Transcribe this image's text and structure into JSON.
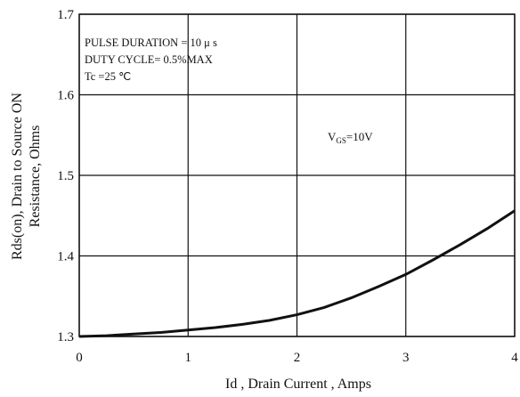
{
  "chart_data": {
    "type": "line",
    "title": "",
    "xlabel": "Id , Drain Current , Amps",
    "ylabel_lines": [
      "Rds(on), Drain to Source ON",
      "Resistance, Ohms"
    ],
    "xlim": [
      0,
      4
    ],
    "ylim": [
      1.3,
      1.7
    ],
    "x_ticks": [
      0,
      1,
      2,
      3,
      4
    ],
    "y_ticks": [
      1.3,
      1.4,
      1.5,
      1.6,
      1.7
    ],
    "x_tick_labels": [
      "0",
      "1",
      "2",
      "3",
      "4"
    ],
    "y_tick_labels": [
      "1.3",
      "1.4",
      "1.5",
      "1.6",
      "1.7"
    ],
    "grid": true,
    "annotations": [
      "PULSE    DURATION = 10 μ s",
      "DUTY    CYCLE= 0.5%MAX",
      "Tc =25  ℃"
    ],
    "series_label": {
      "main": "V",
      "sub": "GS",
      "rest": "=10V"
    },
    "series": [
      {
        "x": [
          0,
          0.25,
          0.5,
          0.75,
          1.0,
          1.25,
          1.5,
          1.75,
          2.0,
          2.25,
          2.5,
          2.75,
          3.0,
          3.25,
          3.5,
          3.75,
          4.0
        ],
        "y": [
          1.3,
          1.301,
          1.303,
          1.305,
          1.308,
          1.311,
          1.315,
          1.32,
          1.327,
          1.336,
          1.348,
          1.362,
          1.377,
          1.395,
          1.414,
          1.434,
          1.456
        ]
      }
    ],
    "colors": {
      "line": "#111111",
      "grid": "#111111",
      "background": "#ffffff"
    }
  }
}
